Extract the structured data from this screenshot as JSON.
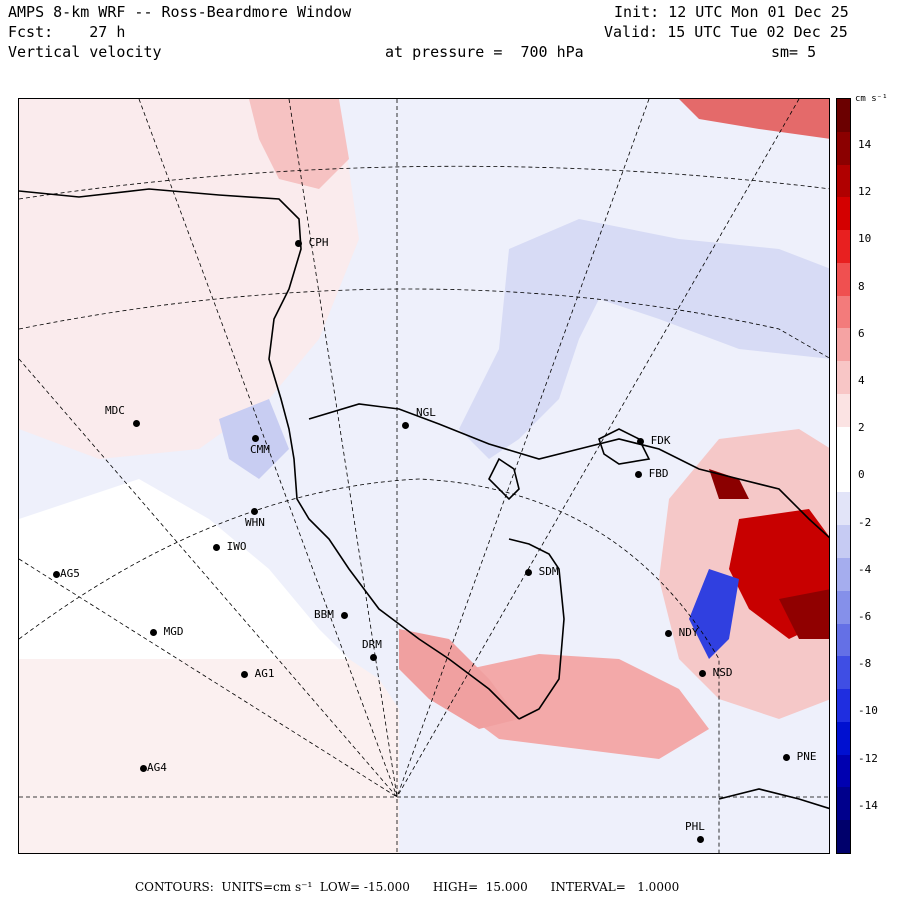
{
  "header": {
    "title_line": "AMPS 8-km WRF -- Ross-Beardmore Window",
    "forecast_line": "Fcst:    27 h",
    "field_line": "Vertical velocity",
    "pressure_line": "at pressure =  700 hPa",
    "init_line": "Init: 12 UTC Mon 01 Dec 25",
    "valid_line": "Valid: 15 UTC Tue 02 Dec 25",
    "smooth_line": "sm= 5"
  },
  "colorbar": {
    "units_label": "cm s⁻¹",
    "ticks": [
      "14",
      "12",
      "10",
      "8",
      "6",
      "4",
      "2",
      "0",
      "-2",
      "-4",
      "-6",
      "-8",
      "-10",
      "-12",
      "-14"
    ],
    "colors": [
      "#6b0000",
      "#8b0000",
      "#b00000",
      "#d40000",
      "#e82020",
      "#f05050",
      "#f37b7b",
      "#f5a3a3",
      "#f8c6c6",
      "#fbe3e3",
      "#ffffff",
      "#ffffff",
      "#e2e4f8",
      "#c6cbf3",
      "#a5adee",
      "#8590ea",
      "#6470e6",
      "#3f4ee4",
      "#1f2ee0",
      "#0010d0",
      "#0000b0",
      "#00008c",
      "#00006b"
    ]
  },
  "stations": [
    {
      "code": "CPH"
    },
    {
      "code": "MDC"
    },
    {
      "code": "NGL"
    },
    {
      "code": "FDK"
    },
    {
      "code": "FBD"
    },
    {
      "code": "WHN"
    },
    {
      "code": "IWO"
    },
    {
      "code": "AG5"
    },
    {
      "code": "SDM"
    },
    {
      "code": "BBM"
    },
    {
      "code": "MGD"
    },
    {
      "code": "AG1"
    },
    {
      "code": "NDY"
    },
    {
      "code": "NSD"
    },
    {
      "code": "AG4"
    },
    {
      "code": "PNE"
    },
    {
      "code": "PHL"
    },
    {
      "code": "CMM"
    },
    {
      "code": "DRM"
    }
  ],
  "footer": {
    "text": "CONTOURS:  UNITS=cm s⁻¹  LOW= -15.000      HIGH=  15.000      INTERVAL=   1.0000"
  }
}
